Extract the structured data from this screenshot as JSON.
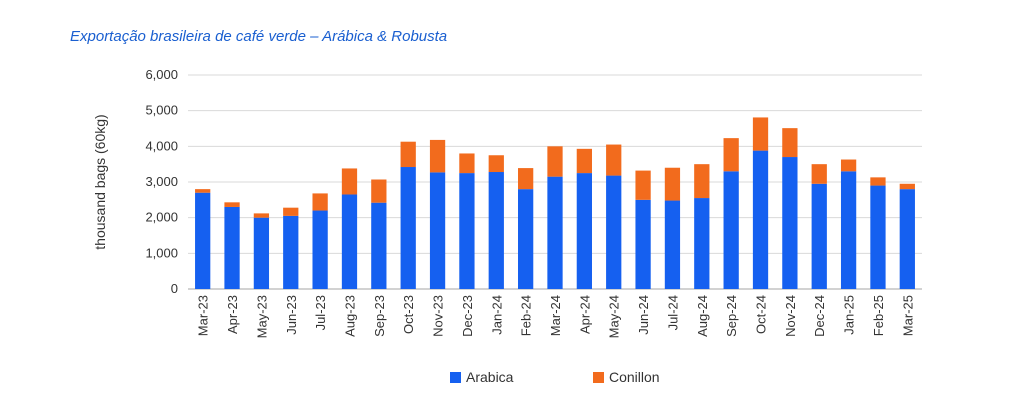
{
  "chart_data": {
    "type": "bar",
    "stacked": true,
    "title": "Exportação brasileira de café verde – Arábica & Robusta",
    "xlabel": "",
    "ylabel": "thousand bags (60kg)",
    "ylim": [
      0,
      6000
    ],
    "yticks": [
      "0",
      "1,000",
      "2,000",
      "3,000",
      "4,000",
      "5,000",
      "6,000"
    ],
    "grid": true,
    "legend_position": "bottom",
    "categories": [
      "Mar-23",
      "Apr-23",
      "May-23",
      "Jun-23",
      "Jul-23",
      "Aug-23",
      "Sep-23",
      "Oct-23",
      "Nov-23",
      "Dec-23",
      "Jan-24",
      "Feb-24",
      "Mar-24",
      "Apr-24",
      "May-24",
      "Jun-24",
      "Jul-24",
      "Aug-24",
      "Sep-24",
      "Oct-24",
      "Nov-24",
      "Dec-24",
      "Jan-25",
      "Feb-25",
      "Mar-25"
    ],
    "series": [
      {
        "name": "Arabica",
        "color": "#1560f0",
        "values": [
          2700,
          2300,
          2000,
          2050,
          2200,
          2650,
          2420,
          3420,
          3270,
          3250,
          3280,
          2800,
          3150,
          3250,
          3180,
          2500,
          2480,
          2550,
          3300,
          3880,
          3700,
          2950,
          3300,
          2900,
          2800
        ]
      },
      {
        "name": "Conillon",
        "color": "#f26b1d",
        "values": [
          100,
          130,
          120,
          230,
          480,
          730,
          650,
          710,
          910,
          550,
          470,
          590,
          850,
          680,
          870,
          820,
          920,
          950,
          930,
          930,
          810,
          550,
          330,
          230,
          150
        ]
      }
    ]
  }
}
